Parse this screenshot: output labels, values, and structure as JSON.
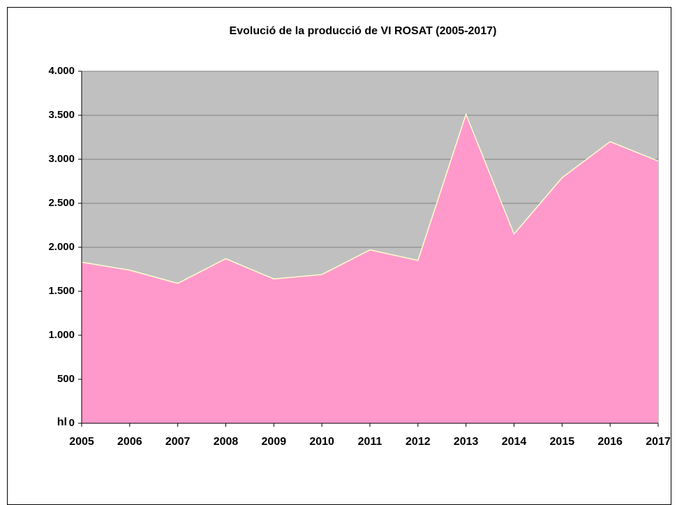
{
  "chart_data": {
    "type": "area",
    "title": "Evolució de la producció de VI ROSAT (2005-2017)",
    "y_label": "hl",
    "categories": [
      "2005",
      "2006",
      "2007",
      "2008",
      "2009",
      "2010",
      "2011",
      "2012",
      "2013",
      "2014",
      "2015",
      "2016",
      "2017"
    ],
    "values": [
      1830,
      1740,
      1590,
      1870,
      1640,
      1690,
      1970,
      1850,
      3510,
      2150,
      2790,
      3200,
      2980
    ],
    "color": "#ff99cc",
    "line_color": "#ffffcc",
    "background": "#c0c0c0",
    "ylim": [
      0,
      4000
    ],
    "yticks": [
      0,
      500,
      {
        "value": 1000,
        "label": "1.000"
      },
      {
        "value": 1500,
        "label": "1.500"
      },
      {
        "value": 2000,
        "label": "2.000"
      },
      {
        "value": 2500,
        "label": "2.500"
      },
      {
        "value": 3000,
        "label": "3.000"
      },
      {
        "value": 3500,
        "label": "3.500"
      },
      {
        "value": 4000,
        "label": "4.000"
      }
    ],
    "grid": true
  }
}
